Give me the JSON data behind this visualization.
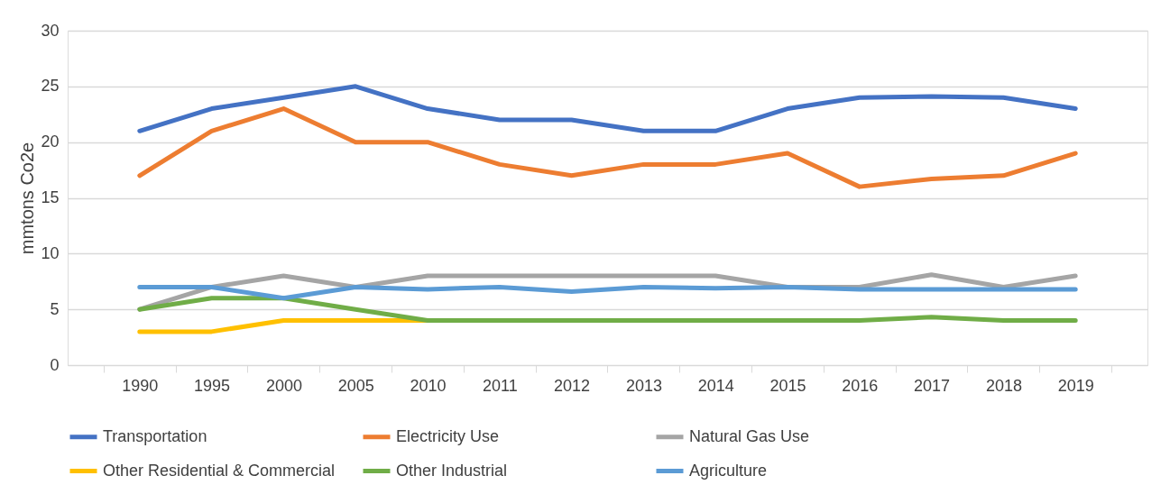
{
  "chart_data": {
    "type": "line",
    "ylabel": "mmtons Co2e",
    "categories": [
      "1990",
      "1995",
      "2000",
      "2005",
      "2010",
      "2011",
      "2012",
      "2013",
      "2014",
      "2015",
      "2016",
      "2017",
      "2018",
      "2019"
    ],
    "series": [
      {
        "name": "Transportation",
        "color": "#4472c4",
        "values": [
          21,
          23,
          24,
          25,
          23,
          22,
          22,
          21,
          21,
          23,
          24,
          24.1,
          24,
          23
        ]
      },
      {
        "name": "Electricity Use",
        "color": "#ed7d31",
        "values": [
          17,
          21,
          23,
          20,
          20,
          18,
          17,
          18,
          18,
          19,
          16,
          16.7,
          17,
          19
        ]
      },
      {
        "name": "Natural Gas Use",
        "color": "#a5a5a5",
        "values": [
          5,
          7,
          8,
          7,
          8,
          8,
          8,
          8,
          8,
          7,
          7,
          8.1,
          7,
          8
        ]
      },
      {
        "name": "Other Residential & Commercial",
        "color": "#ffc000",
        "values": [
          3,
          3,
          4,
          4,
          4,
          null,
          null,
          null,
          null,
          null,
          null,
          null,
          null,
          null
        ]
      },
      {
        "name": "Other Industrial",
        "color": "#70ad47",
        "values": [
          5,
          6,
          6,
          5,
          4,
          4,
          4,
          4,
          4,
          4,
          4,
          4.3,
          4,
          4
        ]
      },
      {
        "name": "Agriculture",
        "color": "#5b9bd5",
        "values": [
          7,
          7,
          6,
          7,
          6.8,
          7,
          6.6,
          7,
          6.9,
          7,
          6.8,
          6.8,
          6.8,
          6.8
        ]
      }
    ],
    "ylim": [
      0,
      30
    ],
    "yticks": [
      0,
      5,
      10,
      15,
      20,
      25,
      30
    ],
    "grid": "y",
    "legend": "bottom",
    "marker": "none",
    "line_style": "solid"
  }
}
